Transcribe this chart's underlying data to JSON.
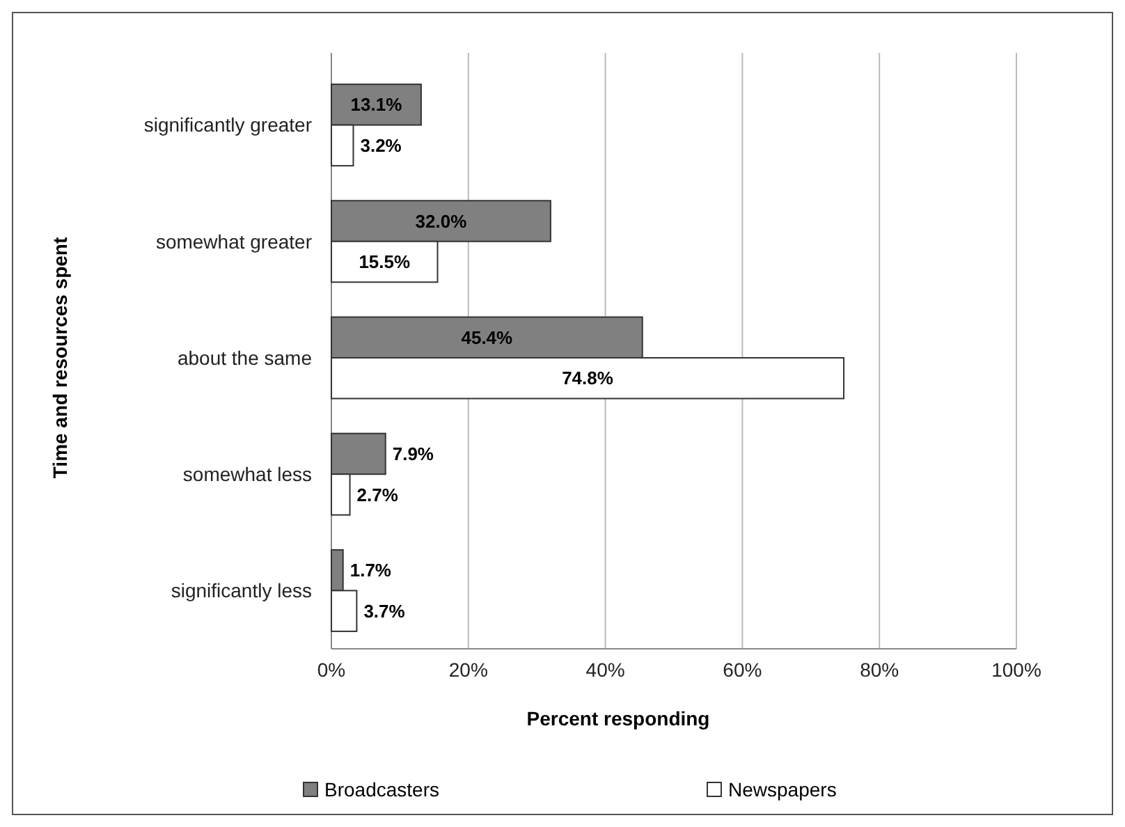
{
  "chart_data": {
    "type": "bar",
    "orientation": "horizontal",
    "xlabel": "Percent responding",
    "ylabel": "Time  and resources spent",
    "categories": [
      "significantly greater",
      "somewhat greater",
      "about the same",
      "somewhat less",
      "significantly less"
    ],
    "series": [
      {
        "name": "Broadcasters",
        "color": "#808080",
        "values": [
          13.1,
          32.0,
          45.4,
          7.9,
          1.7
        ],
        "value_labels": [
          "13.1%",
          "32.0%",
          "45.4%",
          "7.9%",
          "1.7%"
        ]
      },
      {
        "name": "Newspapers",
        "color": "#ffffff",
        "values": [
          3.2,
          15.5,
          74.8,
          2.7,
          3.7
        ],
        "value_labels": [
          "3.2%",
          "15.5%",
          "74.8%",
          "2.7%",
          "3.7%"
        ]
      }
    ],
    "xlim": [
      0,
      100
    ],
    "xticks": [
      {
        "value": 0,
        "label": "0%"
      },
      {
        "value": 20,
        "label": "20%"
      },
      {
        "value": 40,
        "label": "40%"
      },
      {
        "value": 60,
        "label": "60%"
      },
      {
        "value": 80,
        "label": "80%"
      },
      {
        "value": 100,
        "label": "100%"
      }
    ],
    "grid": "x",
    "legend": "bottom"
  }
}
